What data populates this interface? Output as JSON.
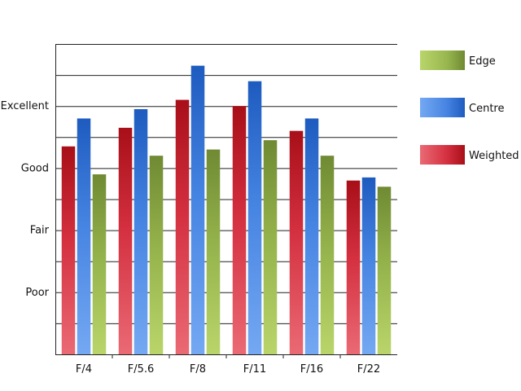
{
  "chart_data": {
    "type": "bar",
    "title": "",
    "xlabel": "",
    "ylabel": "",
    "categories": [
      "F/4",
      "F/5.6",
      "F/8",
      "F/11",
      "F/16",
      "F/22"
    ],
    "ylim": [
      0,
      10
    ],
    "yticks": [
      {
        "value": 2,
        "label": "Poor"
      },
      {
        "value": 4,
        "label": "Fair"
      },
      {
        "value": 6,
        "label": "Good"
      },
      {
        "value": 8,
        "label": "Excellent"
      }
    ],
    "grid": true,
    "legend_position": "right",
    "series": [
      {
        "name": "Weighted",
        "values": [
          6.7,
          7.3,
          8.2,
          8.0,
          7.2,
          5.6
        ],
        "color": "#c0161e"
      },
      {
        "name": "Centre",
        "values": [
          7.6,
          7.9,
          9.3,
          8.8,
          7.6,
          5.7
        ],
        "color": "#2f6ed1"
      },
      {
        "name": "Edge",
        "values": [
          5.8,
          6.4,
          6.6,
          6.9,
          6.4,
          5.4
        ],
        "color": "#8fab45"
      }
    ],
    "legend_order": [
      "Edge",
      "Centre",
      "Weighted"
    ]
  }
}
